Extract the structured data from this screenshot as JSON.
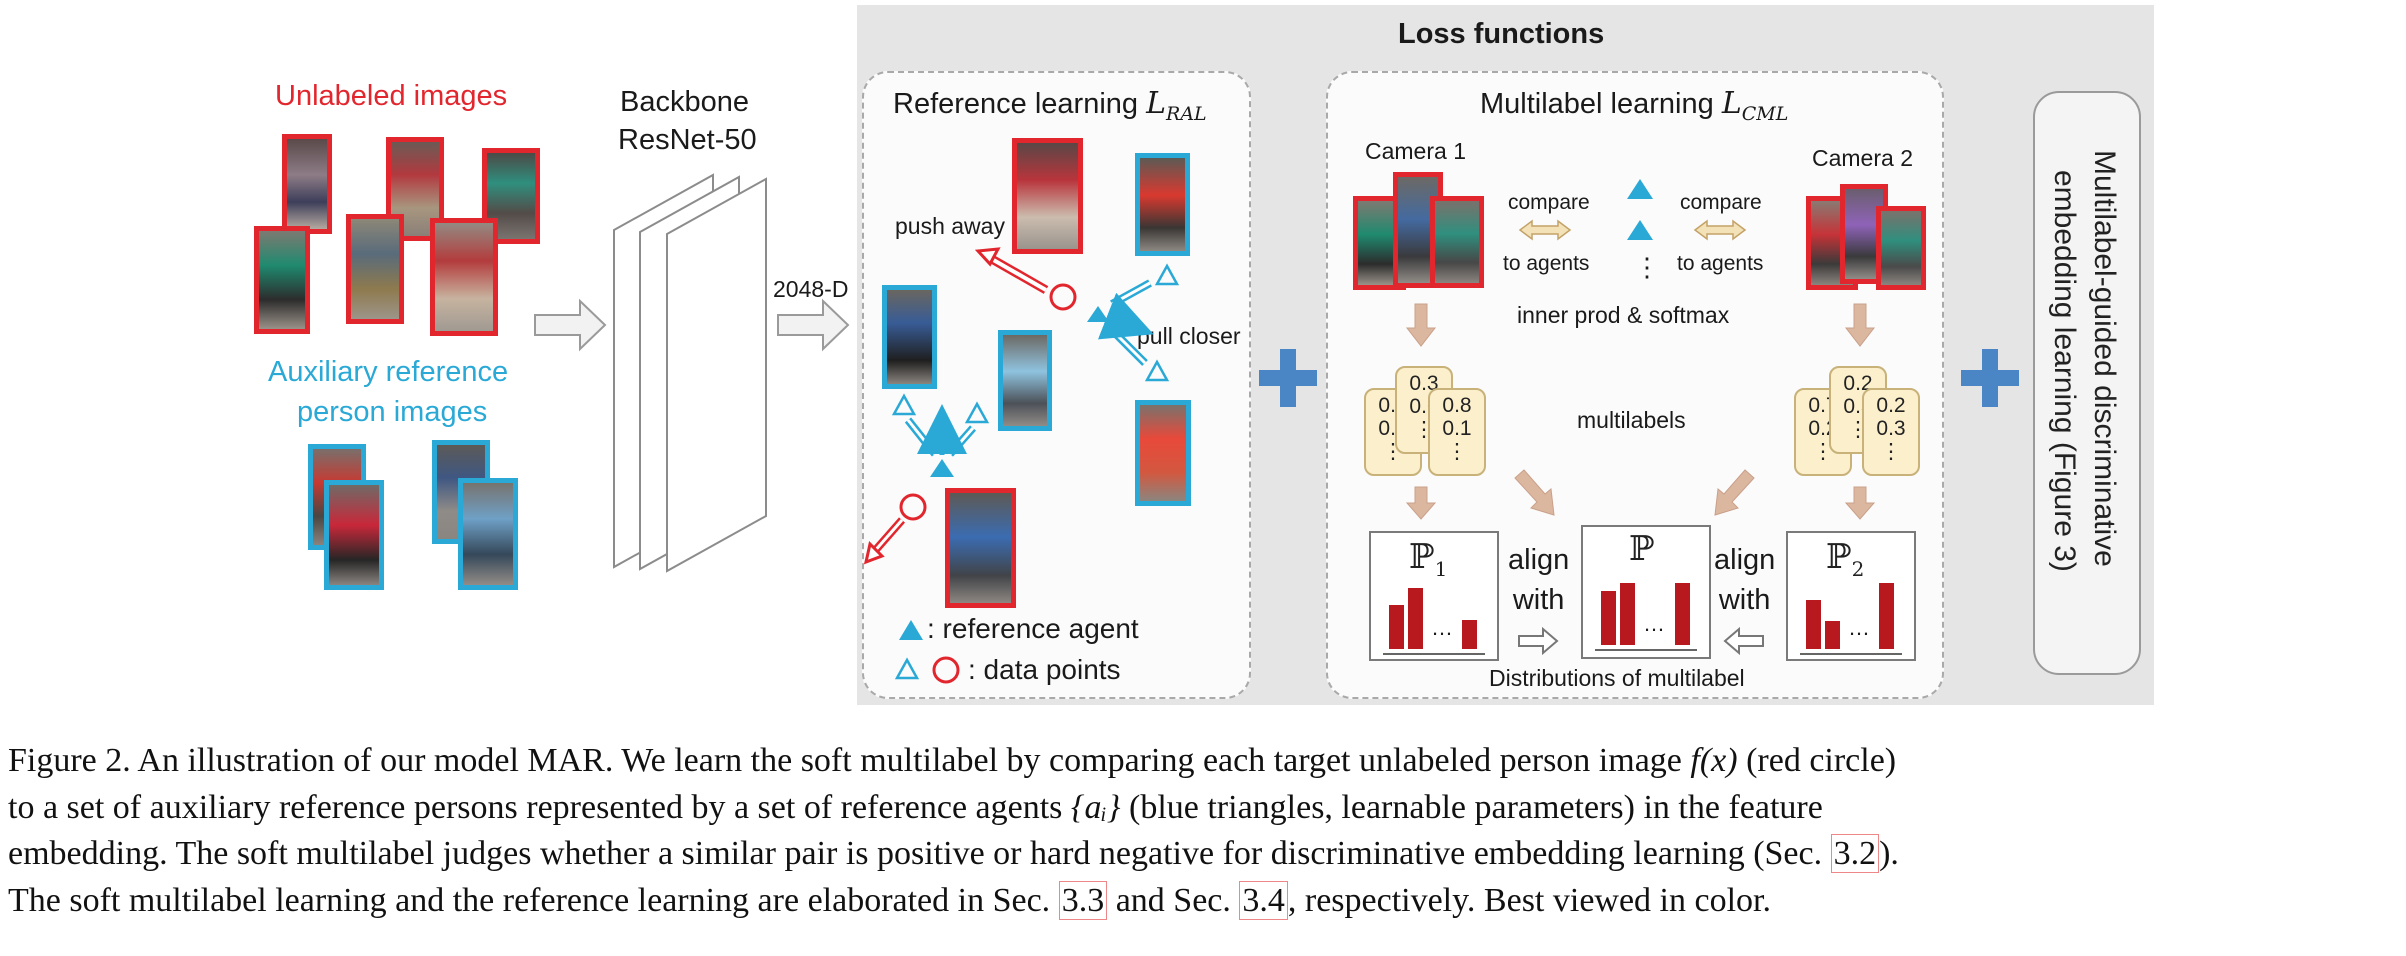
{
  "figure": {
    "unlabeled_label": "Unlabeled images",
    "auxiliary_label_1": "Auxiliary reference",
    "auxiliary_label_2": "person images",
    "backbone_1": "Backbone",
    "backbone_2": "ResNet-50",
    "feature_dim": "2048-D",
    "loss_title": "Loss functions",
    "ref_learning": {
      "title": "Reference learning",
      "symbol": "L",
      "subscript": "RAL",
      "push_away": "push away",
      "pull_closer": "pull closer",
      "legend_agent": ": reference agent",
      "legend_points": ": data points"
    },
    "ml_learning": {
      "title": "Multilabel learning",
      "symbol": "L",
      "subscript": "CML",
      "camera1": "Camera 1",
      "camera2": "Camera 2",
      "compare": "compare",
      "to_agents": "to agents",
      "vdots": "⋮",
      "inner_prod": "inner prod & softmax",
      "multilabels": "multilabels",
      "distributions": "Distributions of multilabel",
      "align_with_1": "align",
      "align_with_2": "with",
      "dist_p1": "ℙ",
      "dist_p1_sub": "1",
      "dist_p": "ℙ",
      "dist_p2": "ℙ",
      "dist_p2_sub": "2",
      "ellipsis": "…",
      "left_cards": [
        [
          "0.4",
          "0.4",
          "⋮"
        ],
        [
          "0.3",
          "0.6",
          "⋮"
        ],
        [
          "0.8",
          "0.1",
          "⋮"
        ]
      ],
      "right_cards": [
        [
          "0.7",
          "0.2",
          "⋮"
        ],
        [
          "0.2",
          "0.5",
          "⋮"
        ],
        [
          "0.2",
          "0.3",
          "⋮"
        ]
      ]
    },
    "side_text_1": "Multilabel-guided discriminative",
    "side_text_2": "embedding learning (Figure 3)"
  },
  "caption": {
    "line1_a": "Figure 2. An illustration of our model MAR. We learn the soft multilabel by comparing each target unlabeled person image ",
    "line1_math": "f(x)",
    "line1_b": " (red circle)",
    "line2_a": "to a set of auxiliary reference persons represented by a set of reference agents ",
    "line2_math": "{aᵢ}",
    "line2_b": " (blue triangles, learnable parameters) in the feature",
    "line3_a": "embedding. The soft multilabel judges whether a similar pair is positive or hard negative for discriminative embedding learning (Sec. ",
    "line3_ref": "3.2",
    "line3_b": ").",
    "line4_a": "The soft multilabel learning and the reference learning are elaborated in Sec. ",
    "line4_ref1": "3.3",
    "line4_b": " and Sec. ",
    "line4_ref2": "3.4",
    "line4_c": ", respectively. Best viewed in color."
  },
  "colors": {
    "red": "#e2262d",
    "cyan": "#2aa9d6",
    "bar": "#b8191e",
    "plus": "#4a86c5",
    "arrow_tan": "#dcb7a0"
  }
}
